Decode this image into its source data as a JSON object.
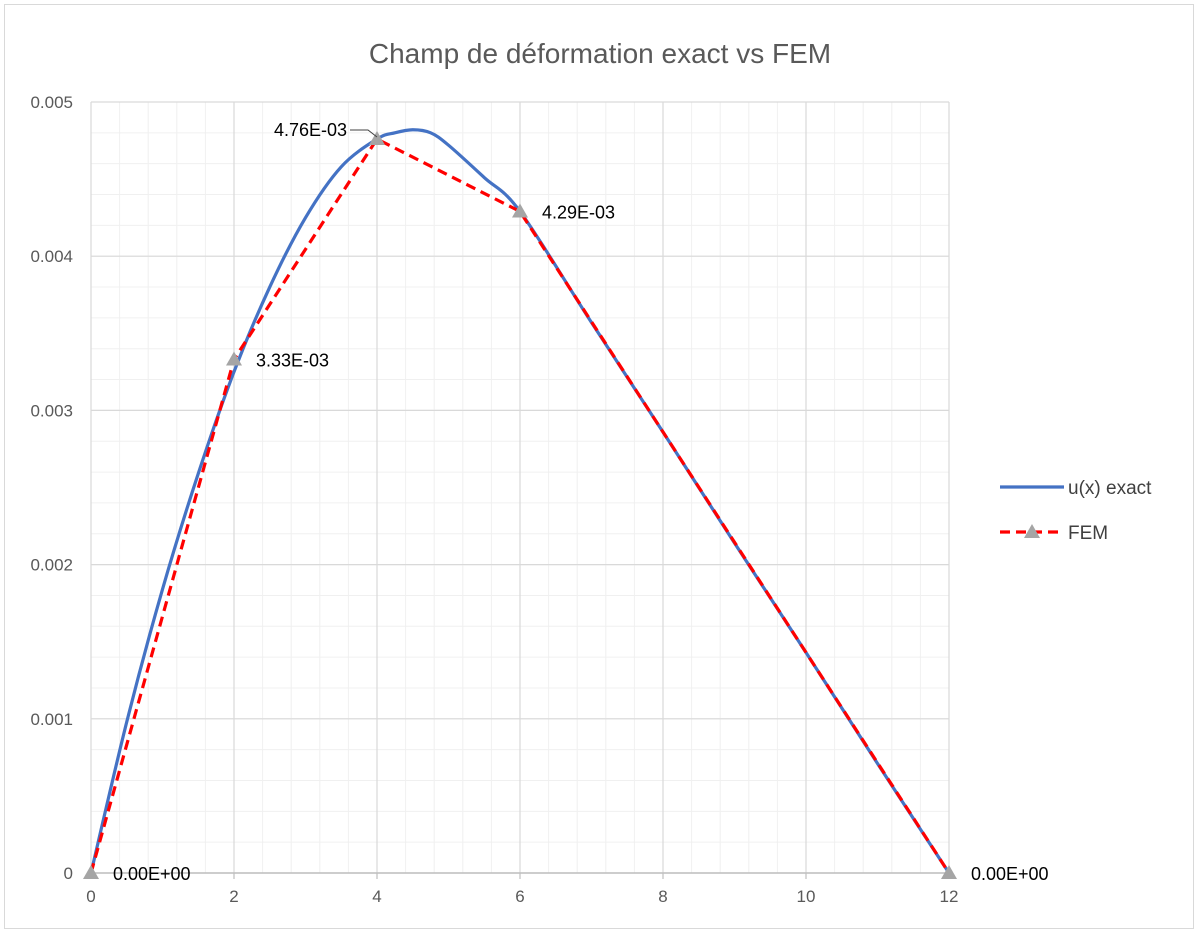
{
  "chart_data": {
    "type": "line",
    "title": "Champ de déformation exact vs FEM",
    "xlabel": "",
    "ylabel": "",
    "xlim": [
      0,
      12
    ],
    "ylim": [
      0,
      0.005
    ],
    "x_ticks": [
      "0",
      "2",
      "4",
      "6",
      "8",
      "10",
      "12"
    ],
    "y_ticks": [
      "0",
      "0.001",
      "0.002",
      "0.003",
      "0.004",
      "0.005"
    ],
    "grid": "major and minor",
    "legend_position": "right",
    "series": [
      {
        "name": "u(x) exact",
        "style": "solid line",
        "color": "#4472C4",
        "x": [
          0,
          0.5,
          1,
          1.5,
          2,
          2.5,
          3,
          3.5,
          4,
          4.25,
          4.5,
          4.75,
          5,
          5.5,
          6,
          7,
          8,
          9,
          10,
          11,
          12
        ],
        "y": [
          0,
          0.00098,
          0.00184,
          0.00259,
          0.00325,
          0.0038,
          0.00425,
          0.00458,
          0.00476,
          0.0048,
          0.00482,
          0.0048,
          0.00472,
          0.00451,
          0.00429,
          0.00357,
          0.00286,
          0.00214,
          0.00143,
          0.00071,
          0
        ]
      },
      {
        "name": "FEM",
        "style": "dashed line with triangle markers",
        "color": "#FF0000",
        "marker_color": "#A5A5A5",
        "x": [
          0,
          2,
          4,
          6,
          12
        ],
        "y": [
          0,
          0.00333,
          0.00476,
          0.00429,
          0
        ],
        "labels": [
          "0.00E+00",
          "3.33E-03",
          "4.76E-03",
          "4.29E-03",
          "0.00E+00"
        ]
      }
    ]
  }
}
